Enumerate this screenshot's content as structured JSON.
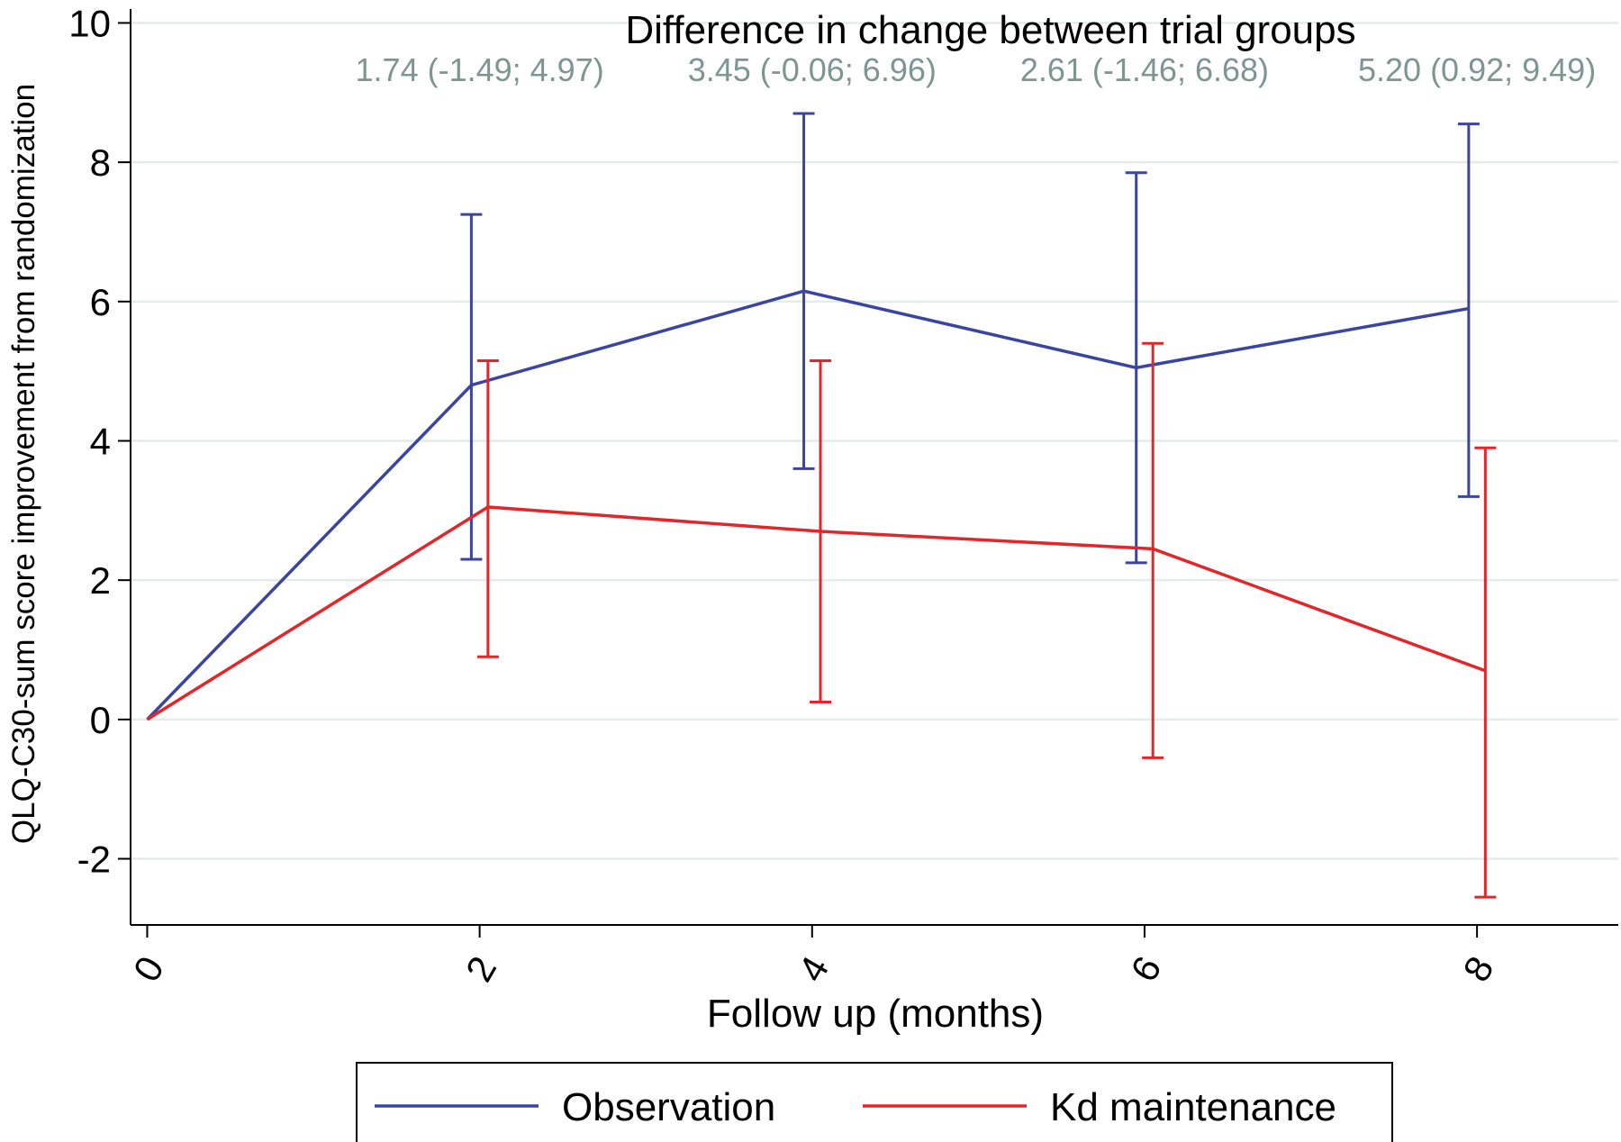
{
  "chart_data": {
    "type": "line",
    "title": "Difference in change between trial groups",
    "xlabel": "Follow up (months)",
    "ylabel": "QLQ-C30-sum score improvement from randomization",
    "xlim": [
      -0.1,
      8.85
    ],
    "ylim": [
      -2.95,
      10.2
    ],
    "x_ticks": [
      "0",
      "2",
      "4",
      "6",
      "8"
    ],
    "y_ticks": [
      "-2",
      "0",
      "2",
      "4",
      "6",
      "8",
      "10"
    ],
    "grid": "horizontal",
    "legend_position": "bottom",
    "annotations": [
      {
        "x": 2,
        "text": "1.74 (-1.49; 4.97)"
      },
      {
        "x": 4,
        "text": "3.45 (-0.06; 6.96)"
      },
      {
        "x": 6,
        "text": "2.61 (-1.46; 6.68)"
      },
      {
        "x": 8,
        "text": "5.20 (0.92; 9.49)"
      }
    ],
    "series": [
      {
        "name": "Observation",
        "color": "#3a45a0",
        "points": [
          {
            "x": 0,
            "y": 0
          },
          {
            "x": 1.95,
            "y": 4.8,
            "lo": 2.3,
            "hi": 7.25
          },
          {
            "x": 3.95,
            "y": 6.15,
            "lo": 3.6,
            "hi": 8.7
          },
          {
            "x": 5.95,
            "y": 5.05,
            "lo": 2.25,
            "hi": 7.85
          },
          {
            "x": 7.95,
            "y": 5.9,
            "lo": 3.2,
            "hi": 8.55
          }
        ]
      },
      {
        "name": "Kd maintenance",
        "color": "#e2262a",
        "points": [
          {
            "x": 0,
            "y": 0
          },
          {
            "x": 2.05,
            "y": 3.05,
            "lo": 0.9,
            "hi": 5.15
          },
          {
            "x": 4.05,
            "y": 2.7,
            "lo": 0.25,
            "hi": 5.15
          },
          {
            "x": 6.05,
            "y": 2.45,
            "lo": -0.55,
            "hi": 5.4
          },
          {
            "x": 8.05,
            "y": 0.7,
            "lo": -2.55,
            "hi": 3.9
          }
        ]
      }
    ]
  },
  "style": {
    "annotation_color": "#7d9690",
    "grid_color": "#e4ece9",
    "axis_color": "#000000"
  }
}
